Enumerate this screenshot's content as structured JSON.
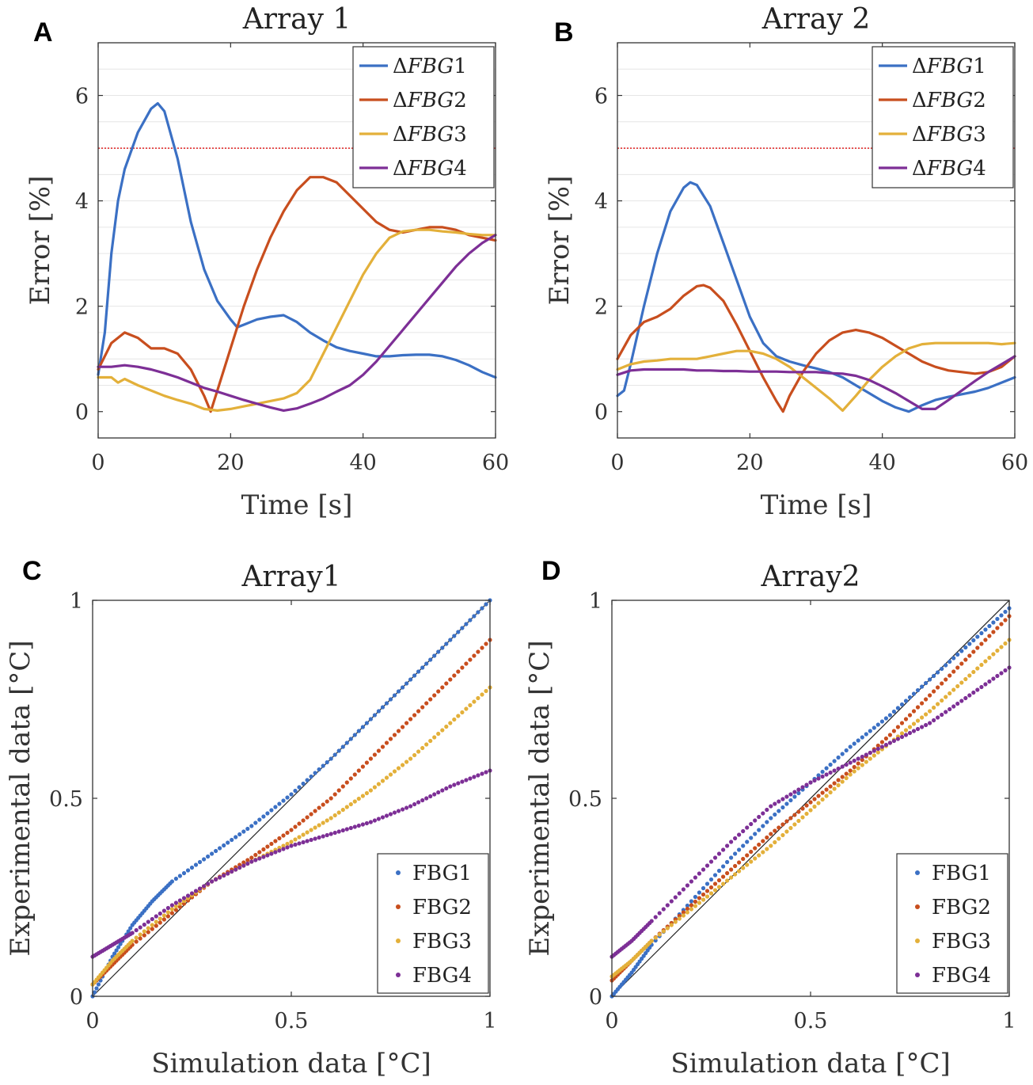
{
  "chart_data": [
    {
      "panel": "A",
      "type": "line",
      "title": "Array 1",
      "xlabel": "Time [s]",
      "ylabel": "Error [%]",
      "xlim": [
        0,
        60
      ],
      "ylim": [
        -0.5,
        7
      ],
      "xticks": [
        0,
        20,
        40,
        60
      ],
      "yticks": [
        0,
        2,
        4,
        6
      ],
      "xtick_labels": [
        "0",
        "20",
        "40",
        "60"
      ],
      "ytick_labels": [
        "0",
        "2",
        "4",
        "6"
      ],
      "threshold": 5,
      "legend_position": "top-right",
      "series": [
        {
          "name": "ΔFBG1",
          "delta": "Δ",
          "italic": "FBG",
          "num": "1",
          "color": "#3b70c4",
          "x": [
            0,
            1,
            2,
            3,
            4,
            6,
            8,
            9,
            10,
            12,
            14,
            16,
            18,
            20,
            21,
            22,
            24,
            26,
            28,
            30,
            32,
            34,
            36,
            38,
            40,
            42,
            44,
            46,
            48,
            50,
            52,
            54,
            56,
            58,
            60
          ],
          "y": [
            0.7,
            1.5,
            3.0,
            4.0,
            4.6,
            5.3,
            5.75,
            5.85,
            5.7,
            4.8,
            3.6,
            2.7,
            2.1,
            1.75,
            1.6,
            1.65,
            1.75,
            1.8,
            1.83,
            1.7,
            1.5,
            1.35,
            1.22,
            1.15,
            1.1,
            1.05,
            1.05,
            1.07,
            1.08,
            1.08,
            1.05,
            0.98,
            0.88,
            0.75,
            0.65
          ]
        },
        {
          "name": "ΔFBG2",
          "delta": "Δ",
          "italic": "FBG",
          "num": "2",
          "color": "#c84e1e",
          "x": [
            0,
            2,
            4,
            6,
            8,
            10,
            12,
            14,
            16,
            17,
            18,
            20,
            22,
            24,
            26,
            28,
            30,
            32,
            34,
            36,
            38,
            40,
            42,
            44,
            46,
            48,
            50,
            52,
            54,
            56,
            58,
            60
          ],
          "y": [
            0.8,
            1.3,
            1.5,
            1.4,
            1.2,
            1.2,
            1.1,
            0.8,
            0.3,
            0.0,
            0.4,
            1.2,
            2.0,
            2.7,
            3.3,
            3.8,
            4.2,
            4.45,
            4.45,
            4.35,
            4.1,
            3.85,
            3.6,
            3.45,
            3.4,
            3.45,
            3.5,
            3.5,
            3.45,
            3.35,
            3.3,
            3.25
          ]
        },
        {
          "name": "ΔFBG3",
          "delta": "Δ",
          "italic": "FBG",
          "num": "3",
          "color": "#e3b03a",
          "x": [
            0,
            2,
            3,
            4,
            6,
            8,
            10,
            12,
            14,
            16,
            18,
            20,
            22,
            24,
            26,
            28,
            30,
            32,
            34,
            36,
            38,
            40,
            42,
            44,
            46,
            48,
            50,
            52,
            54,
            56,
            58,
            60
          ],
          "y": [
            0.65,
            0.65,
            0.55,
            0.62,
            0.5,
            0.4,
            0.3,
            0.22,
            0.15,
            0.05,
            0.02,
            0.05,
            0.1,
            0.15,
            0.2,
            0.25,
            0.35,
            0.6,
            1.1,
            1.6,
            2.1,
            2.6,
            3.0,
            3.3,
            3.42,
            3.45,
            3.45,
            3.42,
            3.4,
            3.37,
            3.35,
            3.35
          ]
        },
        {
          "name": "ΔFBG4",
          "delta": "Δ",
          "italic": "FBG",
          "num": "4",
          "color": "#7d2f96",
          "x": [
            0,
            2,
            4,
            6,
            8,
            10,
            12,
            14,
            16,
            18,
            20,
            22,
            24,
            26,
            28,
            30,
            32,
            34,
            36,
            38,
            40,
            42,
            44,
            46,
            48,
            50,
            52,
            54,
            56,
            58,
            60
          ],
          "y": [
            0.85,
            0.85,
            0.88,
            0.85,
            0.8,
            0.73,
            0.65,
            0.55,
            0.45,
            0.38,
            0.3,
            0.22,
            0.15,
            0.08,
            0.02,
            0.06,
            0.15,
            0.25,
            0.38,
            0.5,
            0.7,
            0.95,
            1.25,
            1.55,
            1.85,
            2.15,
            2.45,
            2.75,
            3.0,
            3.2,
            3.35
          ]
        }
      ]
    },
    {
      "panel": "B",
      "type": "line",
      "title": "Array 2",
      "xlabel": "Time [s]",
      "ylabel": "Error [%]",
      "xlim": [
        0,
        60
      ],
      "ylim": [
        -0.5,
        7
      ],
      "xticks": [
        0,
        20,
        40,
        60
      ],
      "yticks": [
        0,
        2,
        4,
        6
      ],
      "xtick_labels": [
        "0",
        "20",
        "40",
        "60"
      ],
      "ytick_labels": [
        "0",
        "2",
        "4",
        "6"
      ],
      "threshold": 5,
      "legend_position": "top-right",
      "series": [
        {
          "name": "ΔFBG1",
          "delta": "Δ",
          "italic": "FBG",
          "num": "1",
          "color": "#3b70c4",
          "x": [
            0,
            1,
            2,
            4,
            6,
            8,
            10,
            11,
            12,
            14,
            16,
            18,
            20,
            22,
            24,
            26,
            28,
            30,
            32,
            34,
            36,
            38,
            40,
            42,
            44,
            46,
            48,
            50,
            52,
            54,
            56,
            58,
            60
          ],
          "y": [
            0.3,
            0.4,
            0.9,
            2.0,
            3.0,
            3.8,
            4.25,
            4.35,
            4.3,
            3.9,
            3.2,
            2.5,
            1.8,
            1.3,
            1.05,
            0.95,
            0.88,
            0.82,
            0.75,
            0.65,
            0.5,
            0.35,
            0.2,
            0.08,
            0.0,
            0.12,
            0.22,
            0.28,
            0.33,
            0.38,
            0.45,
            0.55,
            0.65
          ]
        },
        {
          "name": "ΔFBG2",
          "delta": "Δ",
          "italic": "FBG",
          "num": "2",
          "color": "#c84e1e",
          "x": [
            0,
            2,
            4,
            6,
            8,
            10,
            12,
            13,
            14,
            16,
            18,
            20,
            22,
            24,
            25,
            26,
            28,
            30,
            32,
            34,
            36,
            38,
            40,
            42,
            44,
            46,
            48,
            50,
            52,
            54,
            56,
            58,
            60
          ],
          "y": [
            1.0,
            1.45,
            1.7,
            1.8,
            1.95,
            2.2,
            2.38,
            2.4,
            2.35,
            2.1,
            1.65,
            1.15,
            0.65,
            0.2,
            0.0,
            0.3,
            0.75,
            1.1,
            1.35,
            1.5,
            1.55,
            1.5,
            1.4,
            1.25,
            1.1,
            0.95,
            0.85,
            0.78,
            0.75,
            0.72,
            0.75,
            0.85,
            1.05
          ]
        },
        {
          "name": "ΔFBG3",
          "delta": "Δ",
          "italic": "FBG",
          "num": "3",
          "color": "#e3b03a",
          "x": [
            0,
            2,
            4,
            6,
            8,
            10,
            12,
            14,
            16,
            18,
            20,
            22,
            24,
            26,
            28,
            30,
            32,
            34,
            36,
            38,
            40,
            42,
            44,
            46,
            48,
            50,
            52,
            54,
            56,
            58,
            60
          ],
          "y": [
            0.8,
            0.9,
            0.95,
            0.97,
            1.0,
            1.0,
            1.0,
            1.05,
            1.1,
            1.15,
            1.15,
            1.1,
            1.0,
            0.85,
            0.65,
            0.45,
            0.25,
            0.02,
            0.3,
            0.6,
            0.85,
            1.05,
            1.2,
            1.28,
            1.3,
            1.3,
            1.3,
            1.3,
            1.3,
            1.28,
            1.3
          ]
        },
        {
          "name": "ΔFBG4",
          "delta": "Δ",
          "italic": "FBG",
          "num": "4",
          "color": "#7d2f96",
          "x": [
            0,
            2,
            4,
            6,
            8,
            10,
            12,
            14,
            16,
            18,
            20,
            22,
            24,
            26,
            28,
            30,
            32,
            34,
            36,
            38,
            40,
            42,
            44,
            46,
            48,
            50,
            52,
            54,
            56,
            58,
            60
          ],
          "y": [
            0.7,
            0.78,
            0.8,
            0.8,
            0.8,
            0.8,
            0.78,
            0.78,
            0.77,
            0.77,
            0.76,
            0.76,
            0.76,
            0.75,
            0.75,
            0.75,
            0.73,
            0.72,
            0.68,
            0.6,
            0.48,
            0.35,
            0.2,
            0.05,
            0.05,
            0.22,
            0.4,
            0.58,
            0.75,
            0.9,
            1.05
          ]
        }
      ]
    },
    {
      "panel": "C",
      "type": "scatter",
      "title": "Array1",
      "xlabel": "Simulation data [°C]",
      "ylabel": "Experimental data [°C]",
      "xlim": [
        0,
        1
      ],
      "ylim": [
        0,
        1
      ],
      "xticks": [
        0,
        0.5,
        1
      ],
      "yticks": [
        0,
        0.5,
        1
      ],
      "xtick_labels": [
        "0",
        "0.5",
        "1"
      ],
      "ytick_labels": [
        "0",
        "0.5",
        "1"
      ],
      "reference_line": "y = x",
      "legend_position": "bottom-right",
      "series": [
        {
          "name": "FBG1",
          "color": "#3b70c4",
          "x": [
            0,
            0.05,
            0.1,
            0.15,
            0.2,
            0.3,
            0.4,
            0.5,
            0.6,
            0.7,
            0.8,
            0.9,
            1.0
          ],
          "y": [
            0.0,
            0.1,
            0.18,
            0.24,
            0.29,
            0.36,
            0.43,
            0.51,
            0.6,
            0.7,
            0.8,
            0.9,
            1.0
          ]
        },
        {
          "name": "FBG2",
          "color": "#c84e1e",
          "x": [
            0,
            0.05,
            0.1,
            0.2,
            0.3,
            0.4,
            0.5,
            0.6,
            0.7,
            0.8,
            0.9,
            1.0
          ],
          "y": [
            0.03,
            0.08,
            0.13,
            0.21,
            0.29,
            0.35,
            0.42,
            0.5,
            0.6,
            0.7,
            0.8,
            0.9
          ]
        },
        {
          "name": "FBG3",
          "color": "#e3b03a",
          "x": [
            0,
            0.05,
            0.1,
            0.2,
            0.3,
            0.4,
            0.5,
            0.6,
            0.7,
            0.8,
            0.9,
            1.0
          ],
          "y": [
            0.03,
            0.09,
            0.14,
            0.22,
            0.29,
            0.34,
            0.39,
            0.45,
            0.52,
            0.6,
            0.69,
            0.78
          ]
        },
        {
          "name": "FBG4",
          "color": "#7d2f96",
          "x": [
            0,
            0.05,
            0.1,
            0.2,
            0.3,
            0.4,
            0.5,
            0.6,
            0.7,
            0.8,
            0.9,
            1.0
          ],
          "y": [
            0.1,
            0.13,
            0.16,
            0.23,
            0.29,
            0.34,
            0.38,
            0.41,
            0.44,
            0.48,
            0.53,
            0.57
          ]
        }
      ]
    },
    {
      "panel": "D",
      "type": "scatter",
      "title": "Array2",
      "xlabel": "Simulation data [°C]",
      "ylabel": "Experimental data [°C]",
      "xlim": [
        0,
        1
      ],
      "ylim": [
        0,
        1
      ],
      "xticks": [
        0,
        0.5,
        1
      ],
      "yticks": [
        0,
        0.5,
        1
      ],
      "xtick_labels": [
        "0",
        "0.5",
        "1"
      ],
      "ytick_labels": [
        "0",
        "0.5",
        "1"
      ],
      "reference_line": "y = x",
      "legend_position": "bottom-right",
      "series": [
        {
          "name": "FBG1",
          "color": "#3b70c4",
          "x": [
            0,
            0.05,
            0.1,
            0.2,
            0.3,
            0.4,
            0.5,
            0.6,
            0.7,
            0.8,
            0.9,
            1.0
          ],
          "y": [
            0.0,
            0.06,
            0.13,
            0.24,
            0.35,
            0.45,
            0.54,
            0.63,
            0.71,
            0.8,
            0.89,
            0.98
          ]
        },
        {
          "name": "FBG2",
          "color": "#c84e1e",
          "x": [
            0,
            0.05,
            0.1,
            0.2,
            0.3,
            0.4,
            0.5,
            0.6,
            0.7,
            0.8,
            0.9,
            1.0
          ],
          "y": [
            0.04,
            0.09,
            0.14,
            0.23,
            0.32,
            0.41,
            0.49,
            0.57,
            0.66,
            0.76,
            0.86,
            0.96
          ]
        },
        {
          "name": "FBG3",
          "color": "#e3b03a",
          "x": [
            0,
            0.05,
            0.1,
            0.2,
            0.3,
            0.4,
            0.5,
            0.6,
            0.7,
            0.8,
            0.9,
            1.0
          ],
          "y": [
            0.05,
            0.09,
            0.14,
            0.22,
            0.3,
            0.38,
            0.47,
            0.56,
            0.64,
            0.72,
            0.81,
            0.9
          ]
        },
        {
          "name": "FBG4",
          "color": "#7d2f96",
          "x": [
            0,
            0.05,
            0.1,
            0.2,
            0.3,
            0.4,
            0.5,
            0.6,
            0.7,
            0.8,
            0.9,
            1.0
          ],
          "y": [
            0.1,
            0.14,
            0.19,
            0.29,
            0.39,
            0.48,
            0.54,
            0.59,
            0.64,
            0.69,
            0.76,
            0.83
          ]
        }
      ]
    }
  ]
}
